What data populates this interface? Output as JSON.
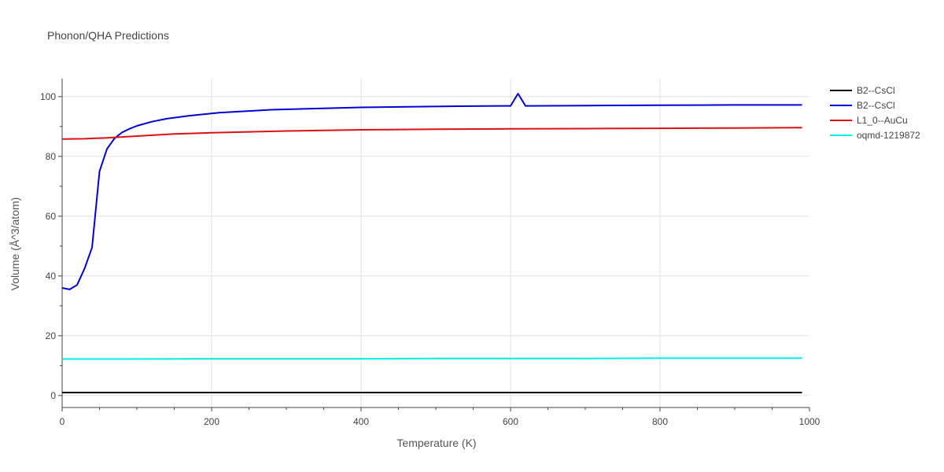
{
  "chart_data": {
    "type": "line",
    "title": "Phonon/QHA Predictions",
    "xlabel": "Temperature (K)",
    "ylabel": "Volume (Å^3/atom)",
    "xlim": [
      0,
      1000
    ],
    "ylim": [
      -4,
      106
    ],
    "x_ticks": [
      0,
      200,
      400,
      600,
      800,
      1000
    ],
    "y_ticks": [
      0,
      20,
      40,
      60,
      80,
      100
    ],
    "grid": true,
    "legend_position": "top-right",
    "series": [
      {
        "name": "B2--CsCl",
        "color": "#000000",
        "x": [
          0,
          100,
          200,
          300,
          400,
          500,
          600,
          700,
          800,
          900,
          990
        ],
        "y": [
          1.0,
          1.0,
          1.0,
          1.0,
          1.0,
          1.0,
          1.0,
          1.0,
          1.0,
          1.0,
          1.0
        ]
      },
      {
        "name": "B2--CsCl",
        "color": "#0000dd",
        "x": [
          0,
          10,
          20,
          30,
          40,
          50,
          60,
          70,
          80,
          90,
          100,
          120,
          140,
          170,
          210,
          280,
          400,
          530,
          600,
          610,
          620,
          700,
          800,
          900,
          990
        ],
        "y": [
          36,
          35.5,
          37,
          42.5,
          49.5,
          75,
          82.5,
          86,
          88,
          89.2,
          90.2,
          91.6,
          92.6,
          93.6,
          94.6,
          95.6,
          96.4,
          96.8,
          96.9,
          101,
          96.9,
          97.0,
          97.1,
          97.2,
          97.2
        ]
      },
      {
        "name": "L1_0--AuCu",
        "color": "#dd1111",
        "x": [
          0,
          30,
          60,
          100,
          150,
          200,
          300,
          400,
          500,
          600,
          700,
          800,
          900,
          990
        ],
        "y": [
          85.8,
          85.9,
          86.2,
          86.8,
          87.5,
          87.9,
          88.5,
          88.9,
          89.1,
          89.2,
          89.3,
          89.4,
          89.5,
          89.6
        ]
      },
      {
        "name": "oqmd-1219872",
        "color": "#00eeee",
        "x": [
          0,
          100,
          200,
          300,
          400,
          500,
          600,
          700,
          800,
          900,
          990
        ],
        "y": [
          12.2,
          12.2,
          12.3,
          12.3,
          12.3,
          12.4,
          12.4,
          12.4,
          12.5,
          12.5,
          12.5
        ]
      }
    ]
  }
}
